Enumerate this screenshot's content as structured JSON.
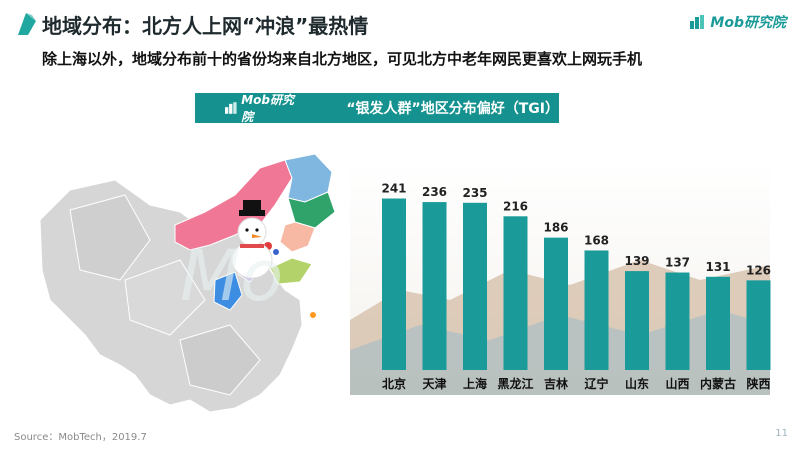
{
  "header": {
    "title": "地域分布：北方人上网“冲浪”最热情",
    "subtitle": "除上海以外，地域分布前十的省份均来自北方地区，可见北方中老年网民更喜欢上网玩手机",
    "logo_text": "Mob研究院"
  },
  "banner": {
    "logo_text": "Mob研究院",
    "title": "“银发人群”地区分布偏好（TGI）"
  },
  "footer": {
    "source": "Source：MobTech，2019.7",
    "page_number": "11"
  },
  "colors": {
    "accent": "#15928f",
    "bar": "#1a9a98",
    "map_gray": "#d3d3d3"
  },
  "chart_data": {
    "type": "bar",
    "title": "“银发人群”地区分布偏好（TGI）",
    "categories": [
      "北京",
      "天津",
      "上海",
      "黑龙江",
      "吉林",
      "辽宁",
      "山东",
      "山西",
      "内蒙古",
      "陕西"
    ],
    "values": [
      241,
      236,
      235,
      216,
      186,
      168,
      139,
      137,
      131,
      126
    ],
    "data_labels": [
      "241",
      "236",
      "235",
      "216",
      "186",
      "168",
      "139",
      "137",
      "131",
      "126"
    ],
    "xlabel": "",
    "ylabel": "",
    "ylim": [
      0,
      260
    ],
    "grid": false,
    "legend": "none"
  }
}
